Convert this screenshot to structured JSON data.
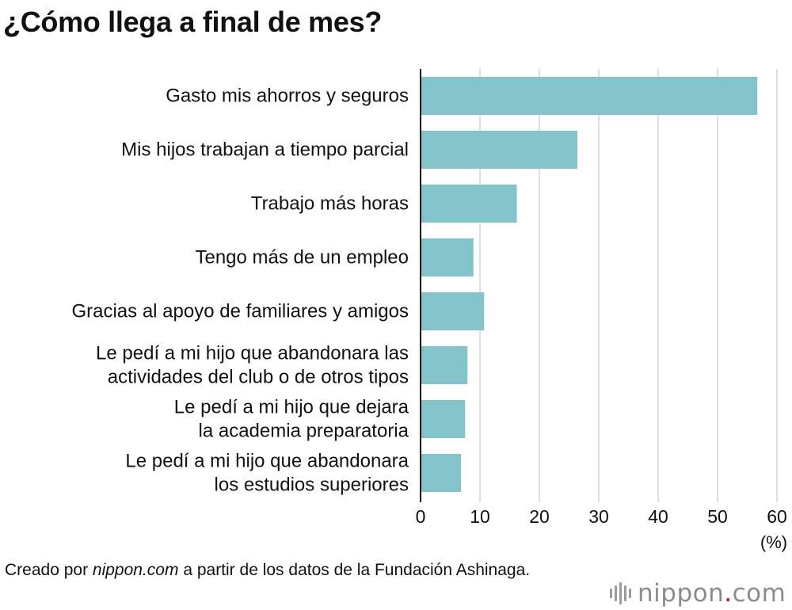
{
  "title": "¿Cómo llega a final de mes?",
  "chart_data": {
    "type": "bar",
    "orientation": "horizontal",
    "title": "¿Cómo llega a final de mes?",
    "categories": [
      [
        "Gasto mis ahorros y seguros"
      ],
      [
        "Mis hijos trabajan a tiempo parcial"
      ],
      [
        "Trabajo más horas"
      ],
      [
        "Tengo más de un empleo"
      ],
      [
        "Gracias al apoyo de familiares y amigos"
      ],
      [
        "Le pedí a mi hijo que abandonara las",
        "actividades del club o de otros tipos"
      ],
      [
        "Le pedí a mi hijo que dejara",
        "la academia preparatoria"
      ],
      [
        "Le pedí a mi hijo que abandonara",
        "los estudios superiores"
      ]
    ],
    "values": [
      56.7,
      26.4,
      16.2,
      8.9,
      10.7,
      7.9,
      7.5,
      6.8
    ],
    "xlim": [
      0,
      60
    ],
    "xticks": [
      0,
      10,
      20,
      30,
      40,
      50,
      60
    ],
    "xlabel": "(%)",
    "grid": true,
    "bar_color": "#82c4c9"
  },
  "source": {
    "prefix": "Creado por ",
    "site": "nippon.com",
    "suffix": " a partir de los datos de la Fundación Ashinaga."
  },
  "brand": {
    "name": "nippon",
    "dot": ".",
    "tld": "com"
  }
}
